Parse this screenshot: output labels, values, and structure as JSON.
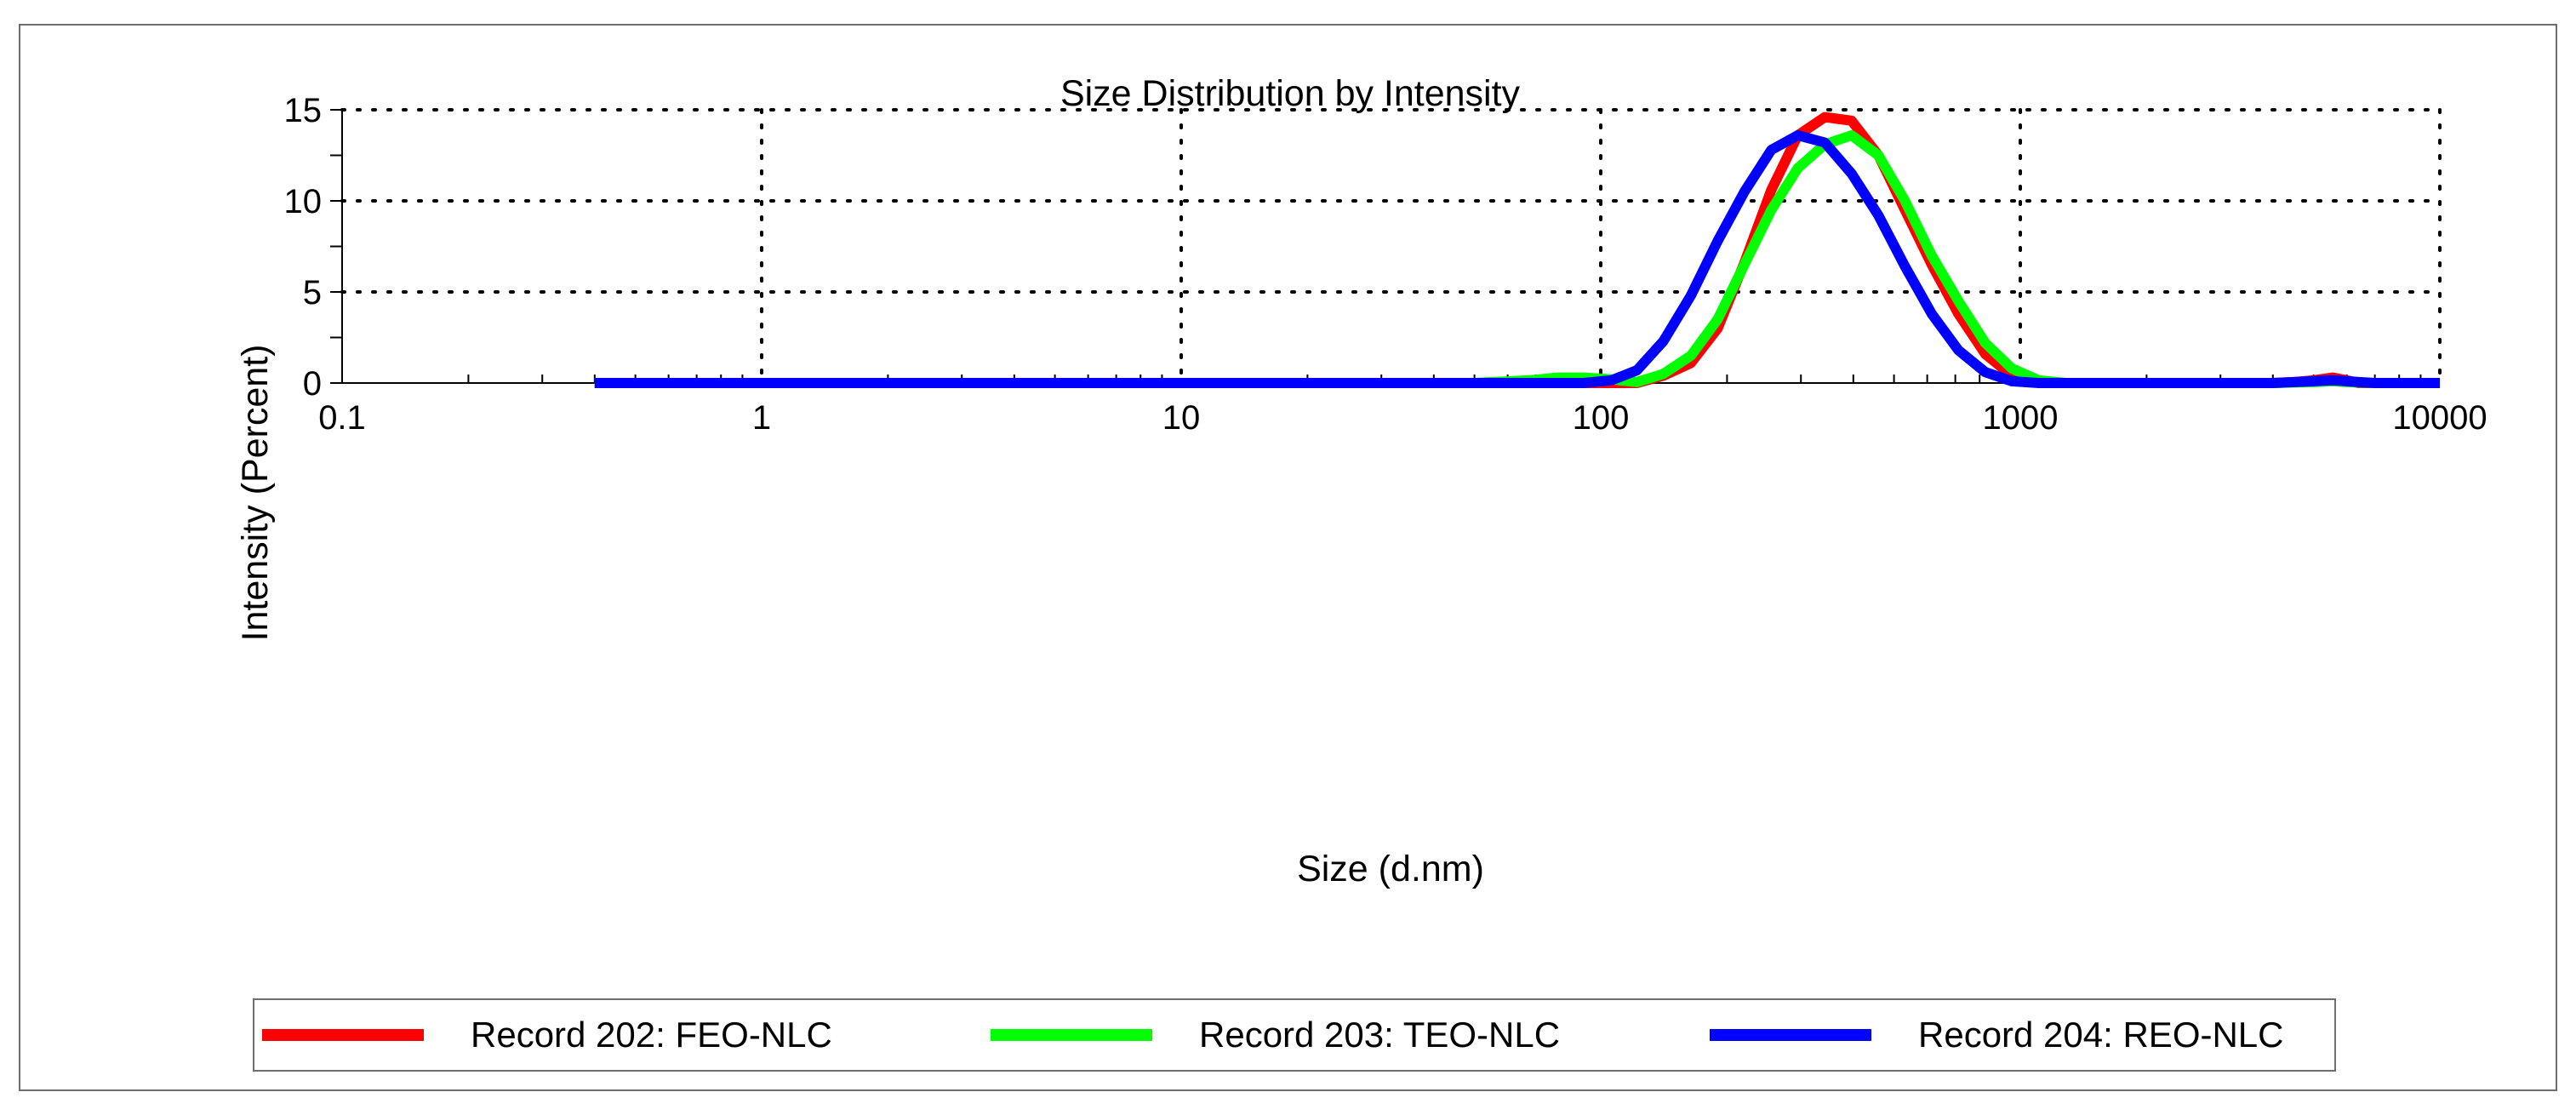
{
  "chart_data": {
    "type": "line",
    "title": "Size Distribution by Intensity",
    "xlabel": "Size (d.nm)",
    "ylabel": "Intensity (Percent)",
    "xscale": "log",
    "xlim": [
      0.1,
      10000
    ],
    "ylim": [
      0,
      15
    ],
    "x_ticks": [
      {
        "value": 0.1,
        "label": "0.1"
      },
      {
        "value": 1,
        "label": "1"
      },
      {
        "value": 10,
        "label": "10"
      },
      {
        "value": 100,
        "label": "100"
      },
      {
        "value": 1000,
        "label": "1000"
      },
      {
        "value": 10000,
        "label": "10000"
      }
    ],
    "y_ticks": [
      {
        "value": 0,
        "label": "0"
      },
      {
        "value": 5,
        "label": "5"
      },
      {
        "value": 10,
        "label": "10"
      },
      {
        "value": 15,
        "label": "15"
      }
    ],
    "grid": true,
    "legend_position": "bottom",
    "series": [
      {
        "name": "Record 202: FEO-NLC",
        "color": "#ff0000",
        "x": [
          0.4,
          1,
          10,
          50,
          91,
          106,
          122,
          141,
          164,
          190,
          220,
          255,
          295,
          342,
          396,
          459,
          531,
          615,
          712,
          825,
          955,
          1106,
          1281,
          2000,
          4000,
          4500,
          5000,
          5560,
          6000,
          6400,
          7000,
          10000
        ],
        "y": [
          0,
          0,
          0,
          0,
          0,
          0,
          0,
          0.4,
          1.1,
          3,
          6.6,
          10.6,
          13.6,
          14.6,
          14.4,
          12.5,
          9.5,
          6.5,
          3.8,
          1.6,
          0.4,
          0.05,
          0,
          0,
          0,
          0.05,
          0.15,
          0.3,
          0.15,
          0,
          0,
          0
        ]
      },
      {
        "name": "Record 203: TEO-NLC",
        "color": "#00ff00",
        "x": [
          0.4,
          1,
          10,
          50,
          68,
          79,
          91,
          106,
          122,
          141,
          164,
          190,
          220,
          255,
          295,
          342,
          396,
          459,
          531,
          615,
          712,
          825,
          955,
          1106,
          1281,
          2000,
          4000,
          5000,
          5560,
          6000,
          7000,
          10000
        ],
        "y": [
          0,
          0,
          0,
          0,
          0.15,
          0.3,
          0.3,
          0.2,
          0.05,
          0.5,
          1.5,
          3.5,
          6.5,
          9.5,
          11.8,
          13.1,
          13.6,
          12.5,
          10,
          7,
          4.5,
          2.2,
          0.8,
          0.15,
          0,
          0,
          0,
          0.05,
          0.1,
          0.05,
          0,
          0
        ]
      },
      {
        "name": "Record 204: REO-NLC",
        "color": "#0000ff",
        "x": [
          0.4,
          1,
          10,
          50,
          91,
          106,
          122,
          141,
          164,
          190,
          220,
          255,
          295,
          342,
          396,
          459,
          531,
          615,
          712,
          825,
          955,
          1106,
          2000,
          4000,
          4500,
          5000,
          5560,
          6000,
          6400,
          7000,
          10000
        ],
        "y": [
          0,
          0,
          0,
          0,
          0,
          0.15,
          0.7,
          2.3,
          4.8,
          7.8,
          10.5,
          12.8,
          13.6,
          13.2,
          11.5,
          9.2,
          6.4,
          3.8,
          1.8,
          0.6,
          0.1,
          0,
          0,
          0,
          0.05,
          0.1,
          0.15,
          0.1,
          0.05,
          0,
          0
        ]
      }
    ]
  }
}
